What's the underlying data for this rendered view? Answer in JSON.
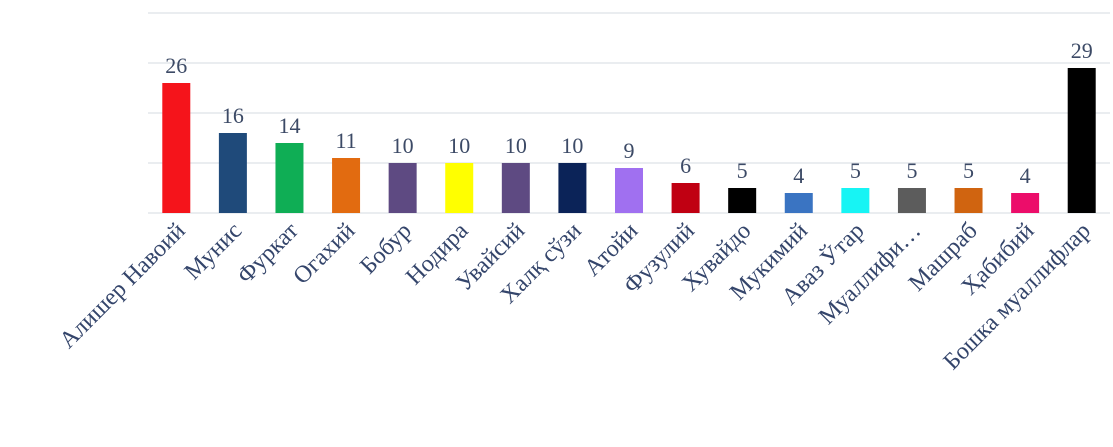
{
  "chart_data": {
    "type": "bar",
    "title": "",
    "xlabel": "",
    "ylabel": "",
    "ylim": [
      0,
      40
    ],
    "grid": true,
    "legend": "none",
    "categories": [
      "Алишер Навоий",
      "Мунис",
      "Фуркат",
      "Огахий",
      "Бобур",
      "Нодира",
      "Увайсий",
      "Халқ сўзи",
      "Атойи",
      "Фузулий",
      "Хувайдо",
      "Мукимий",
      "Аваз Ўтар",
      "Муаллифи…",
      "Машраб",
      "Ҳабибий",
      "Бошка муаллифлар"
    ],
    "values": [
      26,
      16,
      14,
      11,
      10,
      10,
      10,
      10,
      9,
      6,
      5,
      4,
      5,
      5,
      5,
      4,
      29
    ],
    "colors": [
      "#f5141b",
      "#1f4a7a",
      "#0fae55",
      "#e26b10",
      "#5e4a82",
      "#ffff00",
      "#5e4a82",
      "#0b2358",
      "#a070f0",
      "#c00012",
      "#000000",
      "#3a74c2",
      "#17f4f4",
      "#5c5c5c",
      "#d06410",
      "#ec0d6a",
      "#000000"
    ]
  }
}
